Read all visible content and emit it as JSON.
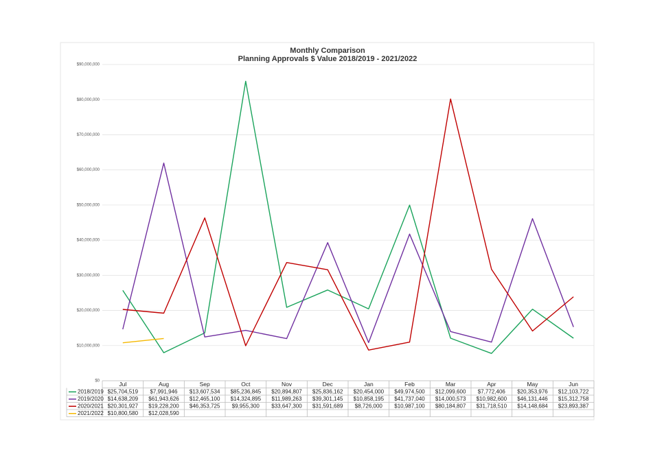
{
  "chart_data": {
    "type": "line",
    "title": "Monthly Comparison",
    "subtitle": "Planning Approvals $ Value 2018/2019 - 2021/2022",
    "categories": [
      "Jul",
      "Aug",
      "Sep",
      "Oct",
      "Nov",
      "Dec",
      "Jan",
      "Feb",
      "Mar",
      "Apr",
      "May",
      "Jun"
    ],
    "ylim": [
      0,
      90000000
    ],
    "yticks": [
      {
        "value": 0,
        "label": "$0"
      },
      {
        "value": 10000000,
        "label": "$10,000,000"
      },
      {
        "value": 20000000,
        "label": "$20,000,000"
      },
      {
        "value": 30000000,
        "label": "$30,000,000"
      },
      {
        "value": 40000000,
        "label": "$40,000,000"
      },
      {
        "value": 50000000,
        "label": "$50,000,000"
      },
      {
        "value": 60000000,
        "label": "$60,000,000"
      },
      {
        "value": 70000000,
        "label": "$70,000,000"
      },
      {
        "value": 80000000,
        "label": "$80,000,000"
      },
      {
        "value": 90000000,
        "label": "$90,000,000"
      }
    ],
    "grid": true,
    "series": [
      {
        "name": "2018/2019",
        "color": "#1aa35b",
        "values": [
          25704519,
          7991946,
          13607534,
          85236845,
          20894807,
          25836162,
          20454000,
          49974500,
          12099600,
          7772406,
          20353976,
          12103722
        ],
        "value_labels": [
          "$25,704,519",
          "$7,991,946",
          "$13,607,534",
          "$85,236,845",
          "$20,894,807",
          "$25,836,162",
          "$20,454,000",
          "$49,974,500",
          "$12,099,600",
          "$7,772,406",
          "$20,353,976",
          "$12,103,722"
        ]
      },
      {
        "name": "2019/2020",
        "color": "#7030a0",
        "values": [
          14638209,
          61943626,
          12465100,
          14324895,
          11989263,
          39301145,
          10858195,
          41737040,
          14000573,
          10982600,
          46131446,
          15312758
        ],
        "value_labels": [
          "$14,638,209",
          "$61,943,626",
          "$12,465,100",
          "$14,324,895",
          "$11,989,263",
          "$39,301,145",
          "$10,858,195",
          "$41,737,040",
          "$14,000,573",
          "$10,982,600",
          "$46,131,446",
          "$15,312,758"
        ]
      },
      {
        "name": "2020/2021",
        "color": "#c00000",
        "values": [
          20301927,
          19228200,
          46353725,
          9955300,
          33647300,
          31591689,
          8726000,
          10987100,
          80184807,
          31718510,
          14148684,
          23893387
        ],
        "value_labels": [
          "$20,301,927",
          "$19,228,200",
          "$46,353,725",
          "$9,955,300",
          "$33,647,300",
          "$31,591,689",
          "$8,726,000",
          "$10,987,100",
          "$80,184,807",
          "$31,718,510",
          "$14,148,684",
          "$23,893,387"
        ]
      },
      {
        "name": "2021/2022",
        "color": "#f5b800",
        "values": [
          10800580,
          12028590,
          null,
          null,
          null,
          null,
          null,
          null,
          null,
          null,
          null,
          null
        ],
        "value_labels": [
          "$10,800,580",
          "$12,028,590",
          null,
          null,
          null,
          null,
          null,
          null,
          null,
          null,
          null,
          null
        ]
      }
    ]
  }
}
